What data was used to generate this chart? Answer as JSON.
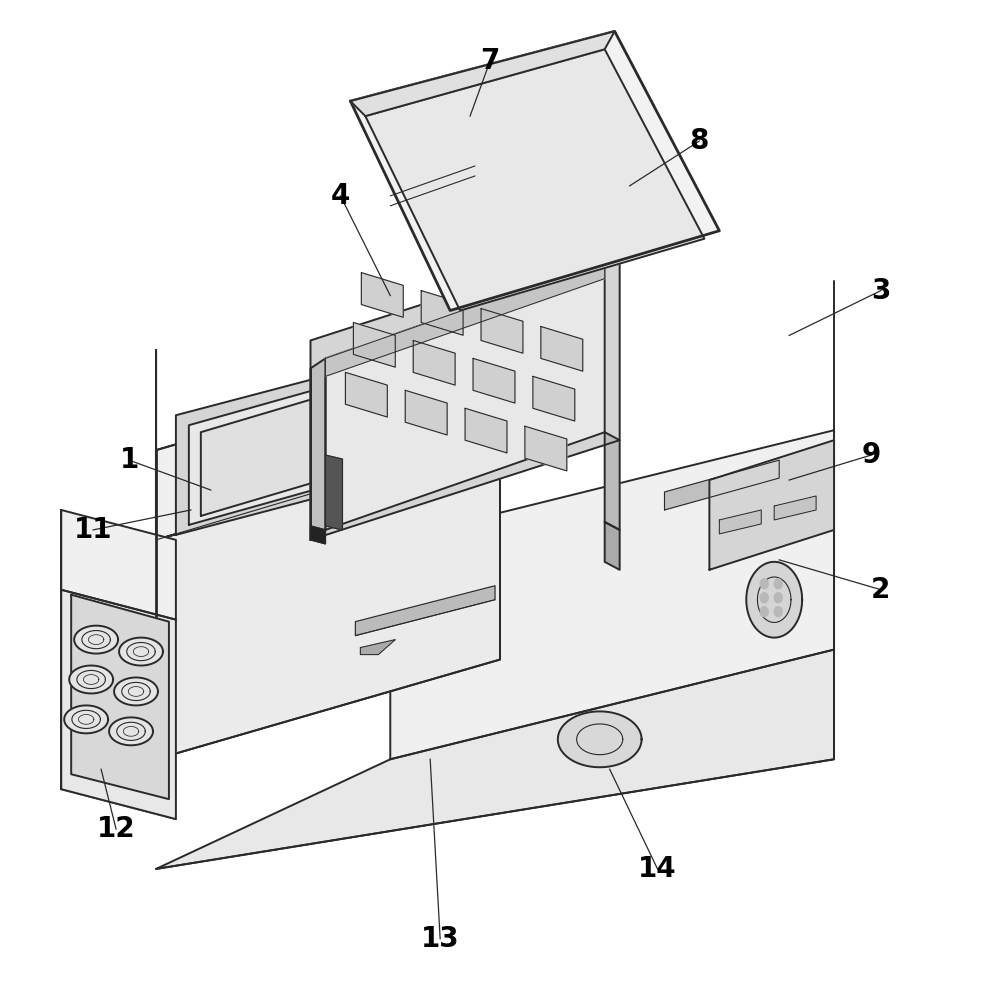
{
  "background_color": "#ffffff",
  "line_color": "#2a2a2a",
  "lw_main": 1.4,
  "lw_thin": 0.8,
  "lw_thick": 2.0,
  "fig_width": 9.88,
  "fig_height": 10.0,
  "label_fontsize": 20,
  "fill_top": "#f0f0f0",
  "fill_left": "#e8e8e8",
  "fill_right": "#d8d8d8",
  "fill_dark": "#c8c8c8",
  "fill_screen": "#d0d0d0",
  "fill_white": "#f8f8f8",
  "fill_tray": "#e0e0e0",
  "fill_well": "#cccccc"
}
